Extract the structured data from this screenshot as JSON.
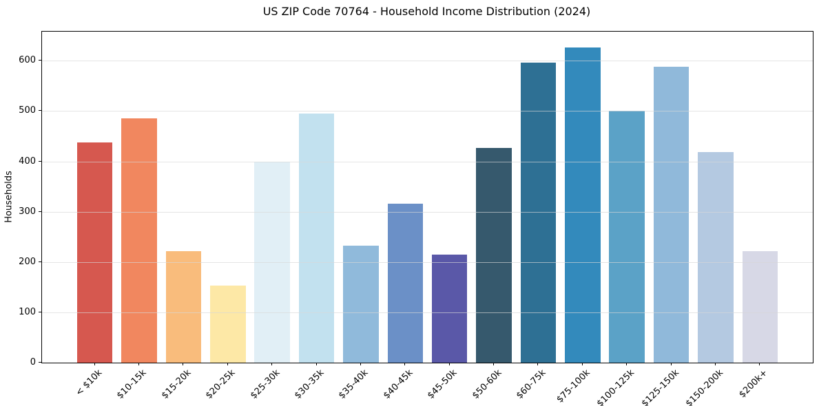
{
  "chart_data": {
    "type": "bar",
    "title": "US ZIP Code 70764 - Household Income Distribution (2024)",
    "xlabel": "",
    "ylabel": "Households",
    "categories": [
      "< $10k",
      "$10-15k",
      "$15-20k",
      "$20-25k",
      "$25-30k",
      "$30-35k",
      "$35-40k",
      "$40-45k",
      "$45-50k",
      "$50-60k",
      "$60-75k",
      "$75-100k",
      "$100-125k",
      "$125-150k",
      "$150-200k",
      "$200k+"
    ],
    "values": [
      438,
      486,
      221,
      153,
      400,
      495,
      232,
      316,
      215,
      427,
      596,
      627,
      500,
      588,
      419,
      222
    ],
    "bar_colors": [
      "#d6584f",
      "#f1875f",
      "#f9bc7c",
      "#fde8a6",
      "#e1eff6",
      "#c2e1ef",
      "#90badb",
      "#6b90c7",
      "#5a58a8",
      "#36596d",
      "#2e7094",
      "#338abc",
      "#5ba2c7",
      "#90b9da",
      "#b4c9e1",
      "#d7d8e6"
    ],
    "yticks": [
      0,
      100,
      200,
      300,
      400,
      500,
      600
    ],
    "ylim": [
      0,
      658
    ],
    "grid": "horizontal-over-bars",
    "legend": "none",
    "frame_color": "#000000",
    "grid_color": "#d7d7d7",
    "background_color": "#ffffff"
  }
}
